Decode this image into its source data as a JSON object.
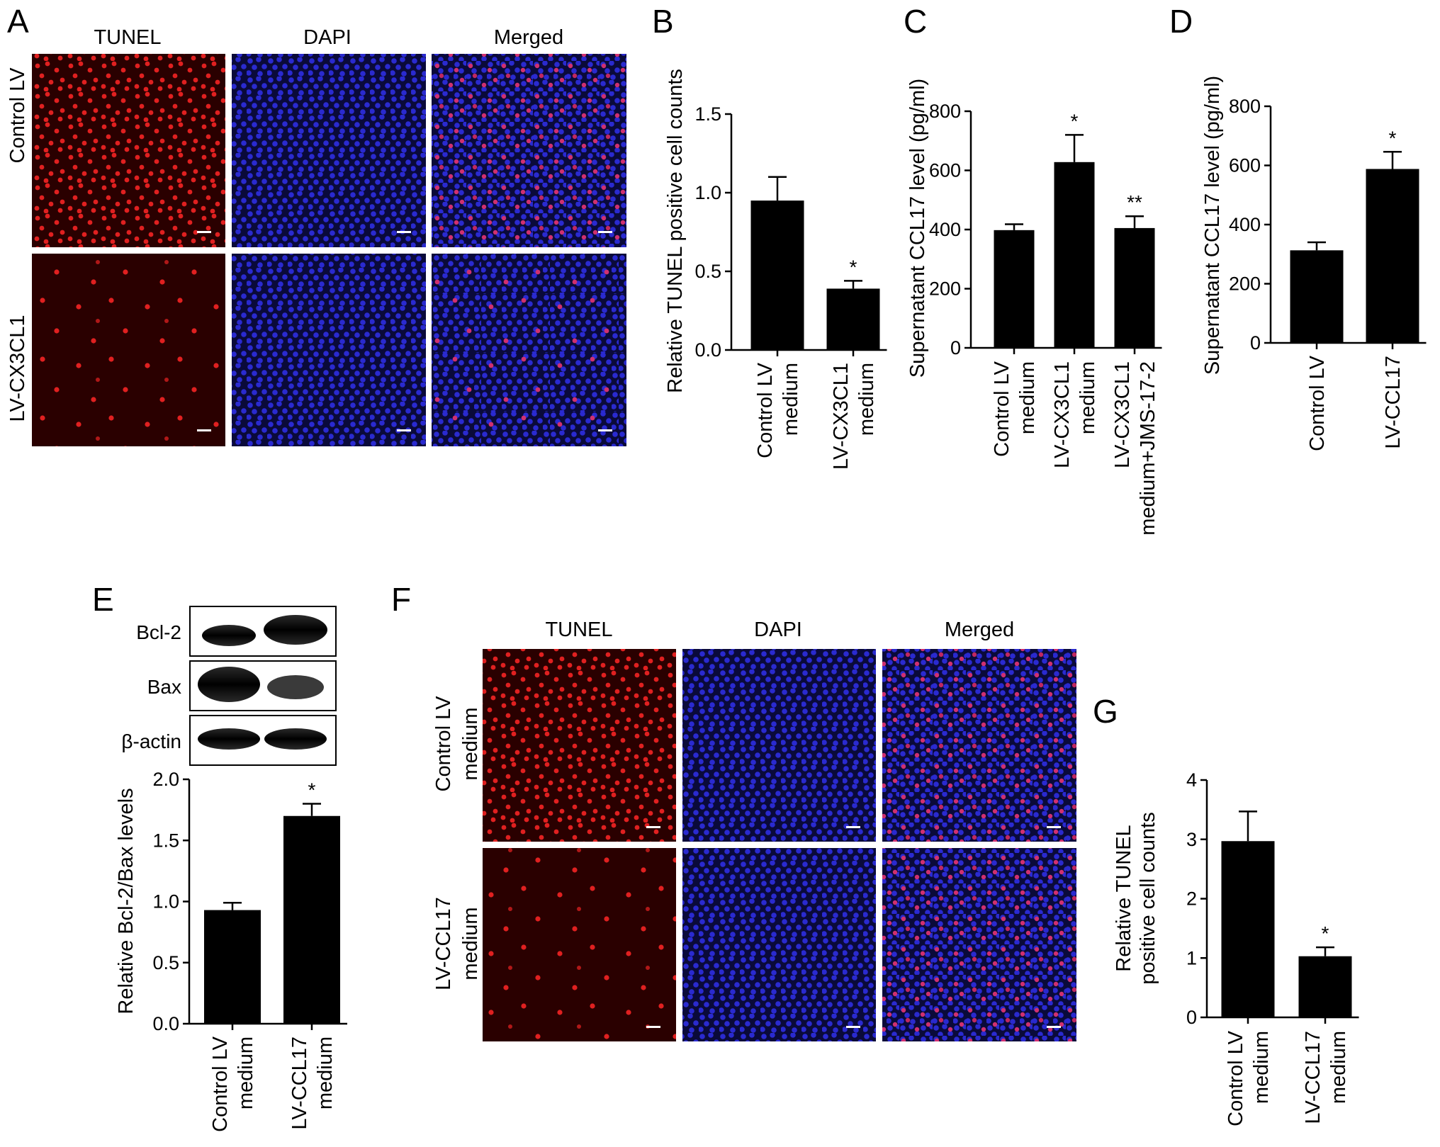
{
  "panels": {
    "A": {
      "label": "A",
      "columns": [
        "TUNEL",
        "DAPI",
        "Merged"
      ],
      "rows": [
        "Control LV",
        "LV-CX3CL1"
      ]
    },
    "E": {
      "label": "E",
      "blot_labels": [
        "Bcl-2",
        "Bax",
        "β-actin"
      ]
    },
    "F": {
      "label": "F",
      "columns": [
        "TUNEL",
        "DAPI",
        "Merged"
      ],
      "rows": [
        [
          "Control LV",
          "medium"
        ],
        [
          "LV-CCL17",
          "medium"
        ]
      ]
    }
  },
  "colors": {
    "bar": "#000000",
    "tunel_bg": "#2a0000",
    "tunel_cell": "#e02020",
    "dapi_bg": "#0a0a3a",
    "dapi_cell": "#2a2ad0",
    "merged_cell": "#d03070"
  },
  "chart_data": [
    {
      "id": "B",
      "panel_label": "B",
      "type": "bar",
      "categories": [
        [
          "Control LV",
          "medium"
        ],
        [
          "LV-CX3CL1",
          "medium"
        ]
      ],
      "values": [
        0.95,
        0.39
      ],
      "errors": [
        0.15,
        0.05
      ],
      "significance": [
        "",
        "*"
      ],
      "ylabel": "Relative TUNEL positive cell counts",
      "ylim": [
        0,
        1.5
      ],
      "yticks": [
        0.0,
        0.5,
        1.0,
        1.5
      ],
      "ytick_labels": [
        "0.0",
        "0.5",
        "1.0",
        "1.5"
      ]
    },
    {
      "id": "C",
      "panel_label": "C",
      "type": "bar",
      "categories": [
        [
          "Control LV",
          "medium"
        ],
        [
          "LV-CX3CL1",
          "medium"
        ],
        [
          "LV-CX3CL1",
          "medium+JMS-17-2"
        ]
      ],
      "values": [
        398,
        628,
        405
      ],
      "errors": [
        20,
        92,
        40
      ],
      "significance": [
        "",
        "*",
        "**"
      ],
      "ylabel": "Supernatant CCL17 level (pg/ml)",
      "ylim": [
        0,
        800
      ],
      "yticks": [
        0,
        200,
        400,
        600,
        800
      ],
      "ytick_labels": [
        "0",
        "200",
        "400",
        "600",
        "800"
      ]
    },
    {
      "id": "D",
      "panel_label": "D",
      "type": "bar",
      "categories": [
        [
          "Control LV"
        ],
        [
          "LV-CCL17"
        ]
      ],
      "values": [
        313,
        588
      ],
      "errors": [
        27,
        58
      ],
      "significance": [
        "",
        "*"
      ],
      "ylabel": "Supernatant CCL17 level (pg/ml)",
      "ylim": [
        0,
        800
      ],
      "yticks": [
        0,
        200,
        400,
        600,
        800
      ],
      "ytick_labels": [
        "0",
        "200",
        "400",
        "600",
        "800"
      ]
    },
    {
      "id": "E",
      "panel_label": "",
      "type": "bar",
      "categories": [
        [
          "Control LV",
          "medium"
        ],
        [
          "LV-CCL17",
          "medium"
        ]
      ],
      "values": [
        0.93,
        1.7
      ],
      "errors": [
        0.06,
        0.1
      ],
      "significance": [
        "",
        "*"
      ],
      "ylabel": "Relative Bcl-2/Bax levels",
      "ylim": [
        0,
        2.0
      ],
      "yticks": [
        0.0,
        0.5,
        1.0,
        1.5,
        2.0
      ],
      "ytick_labels": [
        "0.0",
        "0.5",
        "1.0",
        "1.5",
        "2.0"
      ]
    },
    {
      "id": "G",
      "panel_label": "G",
      "type": "bar",
      "categories": [
        [
          "Control LV",
          "medium"
        ],
        [
          "LV-CCL17",
          "medium"
        ]
      ],
      "values": [
        2.97,
        1.03
      ],
      "errors": [
        0.5,
        0.15
      ],
      "significance": [
        "",
        "*"
      ],
      "ylabel": "Relative TUNEL|positive cell counts",
      "ylim": [
        0,
        4
      ],
      "yticks": [
        0,
        1,
        2,
        3,
        4
      ],
      "ytick_labels": [
        "0",
        "1",
        "2",
        "3",
        "4"
      ]
    }
  ]
}
